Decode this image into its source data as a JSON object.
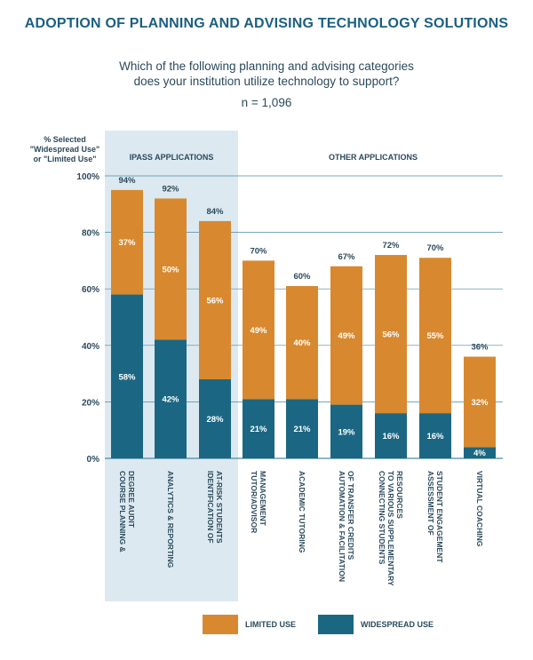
{
  "title": "ADOPTION OF PLANNING AND ADVISING TECHNOLOGY SOLUTIONS",
  "question_line1": "Which of the following planning and advising categories",
  "question_line2": "does your institution utilize technology to support?",
  "n_label": "n = 1,096",
  "colors": {
    "limited": "#d8892f",
    "widespread": "#1b6783",
    "ipass_panel": "#dde9f0",
    "grid": "#4b8aa6",
    "text": "#2b4a5c"
  },
  "chart_data": {
    "type": "bar",
    "stacked": true,
    "ylabel_lines": [
      "% Selected",
      "\"Widespread Use\"",
      "or \"Limited Use\""
    ],
    "ylim": [
      0,
      100
    ],
    "yticks": [
      "0%",
      "20%",
      "40%",
      "60%",
      "80%",
      "100%"
    ],
    "groups": [
      {
        "label": "IPASS APPLICATIONS",
        "category_indices": [
          0,
          1,
          2
        ]
      },
      {
        "label": "OTHER APPLICATIONS",
        "category_indices": [
          3,
          4,
          5,
          6,
          7,
          8
        ]
      }
    ],
    "categories": [
      [
        "COURSE PLANNING &",
        "DEGREE AUDIT"
      ],
      [
        "ANALYTICS & REPORTING"
      ],
      [
        "IDENTIFICATION OF",
        "AT-RISK STUDENTS"
      ],
      [
        "TUTOR/ADVISOR",
        "MANAGEMENT"
      ],
      [
        "ACADEMIC TUTORING"
      ],
      [
        "AUTOMATION & FACILITATION",
        "OF TRANSFER CREDITS"
      ],
      [
        "CONNECTING STUDENTS",
        "TO VARIOUS SUPPLEMENTARY",
        "RESOURCES"
      ],
      [
        "ASSESSMENT OF",
        "STUDENT ENGAGEMENT"
      ],
      [
        "VIRTUAL COACHING"
      ]
    ],
    "series": [
      {
        "name": "WIDESPREAD USE",
        "values": [
          58,
          42,
          28,
          21,
          21,
          19,
          16,
          16,
          4
        ],
        "labels": [
          "58%",
          "42%",
          "28%",
          "21%",
          "21%",
          "19%",
          "16%",
          "16%",
          "4%"
        ]
      },
      {
        "name": "LIMITED USE",
        "values": [
          37,
          50,
          56,
          49,
          40,
          49,
          56,
          55,
          32
        ],
        "labels": [
          "37%",
          "50%",
          "56%",
          "49%",
          "40%",
          "49%",
          "56%",
          "55%",
          "32%"
        ]
      }
    ],
    "totals": [
      "94%",
      "92%",
      "84%",
      "70%",
      "60%",
      "67%",
      "72%",
      "70%",
      "36%"
    ],
    "legend": [
      "LIMITED USE",
      "WIDESPREAD USE"
    ],
    "grid": true
  }
}
